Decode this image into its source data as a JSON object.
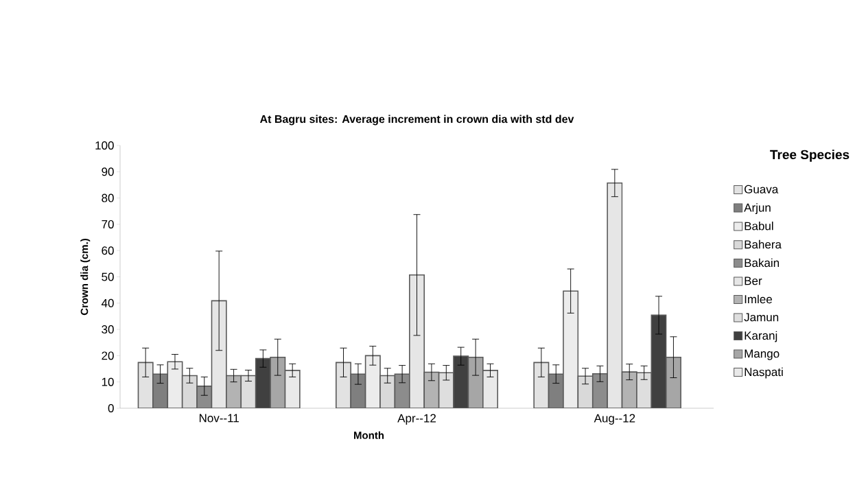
{
  "chart_data": {
    "type": "bar",
    "title": "At Bagru sites: Average increment  in  crown dia  with  std dev",
    "xlabel": "Month",
    "ylabel": "Crown dia (cm.)",
    "legend_title": "Tree Species",
    "categories": [
      "Nov--11",
      "Apr--12",
      "Aug--12"
    ],
    "ylim": [
      0,
      100
    ],
    "yticks": [
      0,
      10,
      20,
      30,
      40,
      50,
      60,
      70,
      80,
      90,
      100
    ],
    "grid": false,
    "legend": "right",
    "series": [
      {
        "name": "Guava",
        "color": "#e2e2e2",
        "values": [
          17.4,
          17.4,
          17.4
        ],
        "errors": [
          5.5,
          5.5,
          5.5
        ]
      },
      {
        "name": "Arjun",
        "color": "#7f7f7f",
        "values": [
          13.0,
          13.0,
          13.0
        ],
        "errors": [
          3.5,
          3.9,
          3.5
        ]
      },
      {
        "name": "Babul",
        "color": "#ececec",
        "values": [
          17.7,
          20.0,
          44.6
        ],
        "errors": [
          2.8,
          3.6,
          8.4
        ]
      },
      {
        "name": "Bahera",
        "color": "#d9d9d9",
        "values": [
          12.4,
          12.4,
          12.2
        ],
        "errors": [
          2.8,
          2.8,
          3.0
        ]
      },
      {
        "name": "Bakain",
        "color": "#8c8c8c",
        "values": [
          8.4,
          13.0,
          13.1
        ],
        "errors": [
          3.5,
          3.3,
          3.0
        ]
      },
      {
        "name": "Ber",
        "color": "#e6e6e6",
        "values": [
          40.9,
          50.7,
          85.7
        ],
        "errors": [
          18.9,
          23,
          5.2
        ]
      },
      {
        "name": "Imlee",
        "color": "#b3b3b3",
        "values": [
          12.4,
          13.7,
          13.8
        ],
        "errors": [
          2.4,
          3.2,
          3.0
        ]
      },
      {
        "name": "Jamun",
        "color": "#dedede",
        "values": [
          12.4,
          13.5,
          13.5
        ],
        "errors": [
          2.1,
          2.8,
          2.6
        ]
      },
      {
        "name": "Karanj",
        "color": "#404040",
        "values": [
          18.9,
          19.8,
          35.4
        ],
        "errors": [
          3.3,
          3.4,
          7.2
        ]
      },
      {
        "name": "Mango",
        "color": "#a6a6a6",
        "values": [
          19.4,
          19.4,
          19.4
        ],
        "errors": [
          6.9,
          6.9,
          7.8
        ]
      },
      {
        "name": "Naspati",
        "color": "#e9e9e9",
        "values": [
          14.4,
          14.4,
          null
        ],
        "errors": [
          2.5,
          2.5,
          null
        ]
      }
    ]
  }
}
